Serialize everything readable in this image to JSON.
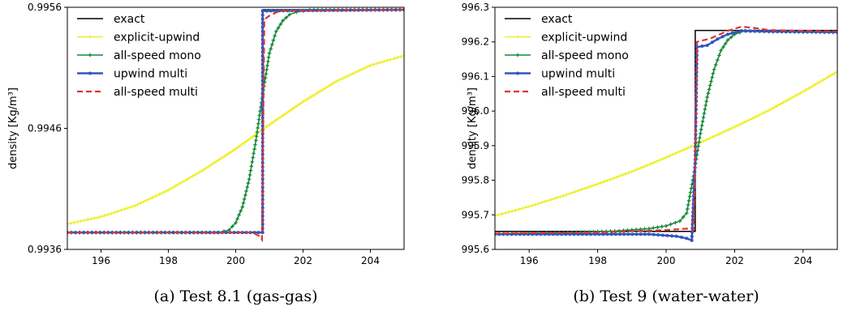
{
  "chart_data": [
    {
      "type": "line",
      "caption": "(a)  Test 8.1 (gas-gas)",
      "title": "",
      "xlabel": "",
      "ylabel": "density [Kg/m³]",
      "xlim": [
        195,
        205
      ],
      "ylim": [
        0.9936,
        0.9956
      ],
      "xticks": [
        "196",
        "198",
        "200",
        "202",
        "204"
      ],
      "yticks": [
        "0.9936",
        "0.9946",
        "0.9956"
      ],
      "ytick_values": [
        0.9936,
        0.9946,
        0.9956
      ],
      "xtick_values": [
        196,
        198,
        200,
        202,
        204
      ],
      "legend_position": "top-left",
      "series": [
        {
          "name": "exact",
          "style": "solid",
          "marker": "none",
          "color": "#000000",
          "x": [
            195,
            200.8,
            200.8,
            205
          ],
          "y": [
            0.99374,
            0.99374,
            0.99558,
            0.99558
          ]
        },
        {
          "name": "explicit-upwind",
          "style": "solid",
          "marker": "plus",
          "color": "#eeee22",
          "x": [
            195,
            196,
            197,
            198,
            199,
            200,
            201,
            202,
            203,
            204,
            205
          ],
          "y": [
            0.99381,
            0.99387,
            0.99396,
            0.99409,
            0.99425,
            0.99443,
            0.99463,
            0.99482,
            0.99499,
            0.99512,
            0.9952
          ]
        },
        {
          "name": "all-speed mono",
          "style": "solid",
          "marker": "star",
          "color": "#1a8a3a",
          "x": [
            195,
            199.5,
            199.8,
            200.0,
            200.2,
            200.4,
            200.6,
            200.8,
            201.0,
            201.2,
            201.4,
            201.6,
            201.8,
            202.0,
            202.2,
            205
          ],
          "y": [
            0.99374,
            0.99374,
            0.99376,
            0.99382,
            0.99395,
            0.99418,
            0.9945,
            0.99488,
            0.99522,
            0.9954,
            0.99549,
            0.99554,
            0.99556,
            0.99557,
            0.99558,
            0.99558
          ]
        },
        {
          "name": "upwind multi",
          "style": "solid",
          "marker": "dot",
          "color": "#3355bb",
          "x": [
            195,
            200.8,
            200.8,
            205
          ],
          "y": [
            0.99374,
            0.99374,
            0.99557,
            0.99558
          ]
        },
        {
          "name": "all-speed multi",
          "style": "dashed",
          "marker": "none",
          "color": "#dd3333",
          "x": [
            195,
            200.5,
            200.7,
            200.78,
            200.85,
            201.0,
            201.3,
            205
          ],
          "y": [
            0.99374,
            0.99374,
            0.99371,
            0.99368,
            0.9955,
            0.99553,
            0.99557,
            0.99558
          ]
        }
      ]
    },
    {
      "type": "line",
      "caption": "(b)  Test 9 (water-water)",
      "title": "",
      "xlabel": "",
      "ylabel": "density [Kg/m³]",
      "xlim": [
        195,
        205
      ],
      "ylim": [
        995.6,
        996.3
      ],
      "xticks": [
        "196",
        "198",
        "200",
        "202",
        "204"
      ],
      "yticks": [
        "995.6",
        "995.7",
        "995.8",
        "995.9",
        "996.0",
        "996.1",
        "996.2",
        "996.3"
      ],
      "ytick_values": [
        995.6,
        995.7,
        995.8,
        995.9,
        996.0,
        996.1,
        996.2,
        996.3
      ],
      "xtick_values": [
        196,
        198,
        200,
        202,
        204
      ],
      "legend_position": "top-left",
      "series": [
        {
          "name": "exact",
          "style": "solid",
          "marker": "none",
          "color": "#000000",
          "x": [
            195,
            200.85,
            200.85,
            205
          ],
          "y": [
            995.652,
            995.652,
            996.233,
            996.233
          ]
        },
        {
          "name": "explicit-upwind",
          "style": "solid",
          "marker": "plus",
          "color": "#eeee22",
          "x": [
            195,
            196,
            197,
            198,
            199,
            200,
            201,
            202,
            203,
            204,
            205
          ],
          "y": [
            995.697,
            995.724,
            995.755,
            995.789,
            995.825,
            995.866,
            995.909,
            995.954,
            996.002,
            996.056,
            996.114
          ]
        },
        {
          "name": "all-speed mono",
          "style": "solid",
          "marker": "star",
          "color": "#1a8a3a",
          "x": [
            195,
            197,
            198.5,
            199.5,
            200.0,
            200.4,
            200.6,
            200.8,
            201.0,
            201.2,
            201.4,
            201.6,
            201.8,
            202.0,
            202.3,
            203,
            205
          ],
          "y": [
            995.645,
            995.648,
            995.653,
            995.66,
            995.668,
            995.682,
            995.705,
            995.812,
            995.935,
            996.04,
            996.12,
            996.175,
            996.205,
            996.222,
            996.232,
            996.23,
            996.228
          ]
        },
        {
          "name": "upwind multi",
          "style": "solid",
          "marker": "dot",
          "color": "#3355bb",
          "x": [
            195,
            199.5,
            200.3,
            200.6,
            200.75,
            200.85,
            200.9,
            201.2,
            201.5,
            201.8,
            202.2,
            203,
            205
          ],
          "y": [
            995.644,
            995.644,
            995.638,
            995.632,
            995.626,
            995.86,
            996.185,
            996.19,
            996.208,
            996.222,
            996.232,
            996.23,
            996.228
          ]
        },
        {
          "name": "all-speed multi",
          "style": "dashed",
          "marker": "none",
          "color": "#dd3333",
          "x": [
            195,
            198,
            200.0,
            200.6,
            200.8,
            200.85,
            200.9,
            201.3,
            201.8,
            202.2,
            202.6,
            203,
            205
          ],
          "y": [
            995.646,
            995.649,
            995.656,
            995.66,
            995.656,
            995.86,
            996.2,
            996.21,
            996.232,
            996.244,
            996.24,
            996.234,
            996.23
          ]
        }
      ]
    }
  ]
}
